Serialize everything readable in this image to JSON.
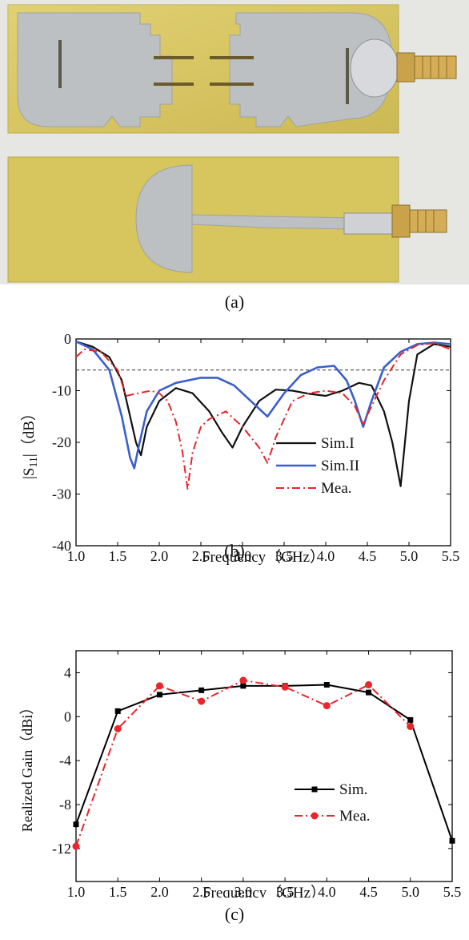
{
  "captions": {
    "a": "(a)",
    "b": "(b)",
    "c": "(c)"
  },
  "colors": {
    "sim1": "#111111",
    "sim2": "#3a5fcd",
    "mea_b": "#e8262b",
    "sim_c": "#000000",
    "mea_c": "#e8262b",
    "substrate": "#d8c65a",
    "metal": "#b9bcbf",
    "connector": "#c9a24a"
  },
  "photo": {
    "icons": [
      "pcb-top-icon",
      "pcb-bottom-icon",
      "sma-connector-icon"
    ]
  },
  "chart_data": [
    {
      "type": "line",
      "title": "",
      "xlabel": "Frequency（GHz）",
      "ylabel_prefix": "|S",
      "ylabel_sub": "11",
      "ylabel_suffix": "|（dB）",
      "xlim": [
        1.0,
        5.5
      ],
      "ylim": [
        -40,
        0
      ],
      "xticks": [
        "1.0",
        "1.5",
        "2.0",
        "2.5",
        "3.0",
        "3.5",
        "4.0",
        "4.5",
        "5.0",
        "5.5"
      ],
      "yticks": [
        "0",
        "-10",
        "-20",
        "-30",
        "-40"
      ],
      "reference_line": -6,
      "legend_position": "right",
      "series": [
        {
          "name": "Sim.I",
          "style": "solid",
          "x": [
            1.0,
            1.2,
            1.4,
            1.55,
            1.65,
            1.72,
            1.78,
            1.85,
            2.0,
            2.2,
            2.4,
            2.6,
            2.75,
            2.88,
            3.0,
            3.2,
            3.4,
            3.6,
            3.8,
            4.0,
            4.2,
            4.4,
            4.55,
            4.7,
            4.8,
            4.9,
            5.0,
            5.1,
            5.3,
            5.5
          ],
          "y": [
            -0.5,
            -1.5,
            -3.5,
            -8,
            -15,
            -20,
            -22.5,
            -17,
            -12,
            -9.5,
            -10.5,
            -14,
            -18,
            -21,
            -17,
            -12,
            -9.8,
            -10,
            -10.6,
            -11,
            -10,
            -8.5,
            -9,
            -14,
            -20,
            -28.5,
            -12,
            -3,
            -1,
            -1.5
          ]
        },
        {
          "name": "Sim.II",
          "style": "solid",
          "x": [
            1.0,
            1.2,
            1.4,
            1.55,
            1.65,
            1.7,
            1.75,
            1.85,
            2.0,
            2.2,
            2.5,
            2.7,
            2.9,
            3.1,
            3.3,
            3.5,
            3.7,
            3.9,
            4.1,
            4.25,
            4.35,
            4.45,
            4.55,
            4.7,
            4.9,
            5.1,
            5.3,
            5.5
          ],
          "y": [
            -0.5,
            -2,
            -6,
            -15,
            -23,
            -25,
            -21,
            -14,
            -10,
            -8.5,
            -7.5,
            -7.5,
            -9,
            -12,
            -15,
            -10.5,
            -7,
            -5.5,
            -5.2,
            -8,
            -12,
            -17,
            -12,
            -5.5,
            -2.5,
            -1,
            -0.7,
            -1
          ]
        },
        {
          "name": "Mea.",
          "style": "dashdot",
          "x": [
            1.0,
            1.1,
            1.3,
            1.5,
            1.6,
            1.75,
            1.9,
            2.0,
            2.1,
            2.2,
            2.28,
            2.34,
            2.4,
            2.5,
            2.6,
            2.8,
            3.0,
            3.2,
            3.3,
            3.4,
            3.6,
            3.8,
            4.0,
            4.2,
            4.35,
            4.45,
            4.55,
            4.7,
            4.9,
            5.1,
            5.3,
            5.5
          ],
          "y": [
            -3.5,
            -2,
            -2.5,
            -6,
            -11,
            -10.5,
            -10,
            -10.5,
            -12,
            -16,
            -22,
            -29,
            -22,
            -17,
            -15.5,
            -14,
            -17,
            -21,
            -24,
            -19,
            -12,
            -10.5,
            -10,
            -10.5,
            -13,
            -16.5,
            -13,
            -8,
            -3,
            -1.2,
            -0.8,
            -2
          ]
        }
      ]
    },
    {
      "type": "line",
      "title": "",
      "xlabel": "Frequency（GHz）",
      "ylabel": "Realized Gain（dBi）",
      "xlim": [
        1.0,
        5.5
      ],
      "ylim": [
        -15,
        6
      ],
      "xticks": [
        "1.0",
        "1.5",
        "2.0",
        "2.5",
        "3.0",
        "3.5",
        "4.0",
        "4.5",
        "5.0",
        "5.5"
      ],
      "yticks": [
        "4",
        "0",
        "-4",
        "-8",
        "-12"
      ],
      "legend_position": "right",
      "series": [
        {
          "name": "Sim.",
          "style": "solid",
          "marker": "square",
          "x": [
            1.0,
            1.5,
            2.0,
            2.5,
            3.0,
            3.5,
            4.0,
            4.5,
            5.0,
            5.5
          ],
          "y": [
            -9.8,
            0.5,
            2.0,
            2.4,
            2.8,
            2.8,
            2.9,
            2.2,
            -0.3,
            -11.3
          ]
        },
        {
          "name": "Mea.",
          "style": "dashdot",
          "marker": "circle",
          "x": [
            1.0,
            1.5,
            2.0,
            2.5,
            3.0,
            3.5,
            4.0,
            4.5,
            5.0
          ],
          "y": [
            -11.8,
            -1.1,
            2.8,
            1.4,
            3.3,
            2.7,
            1.0,
            2.9,
            -0.9
          ]
        }
      ]
    }
  ]
}
